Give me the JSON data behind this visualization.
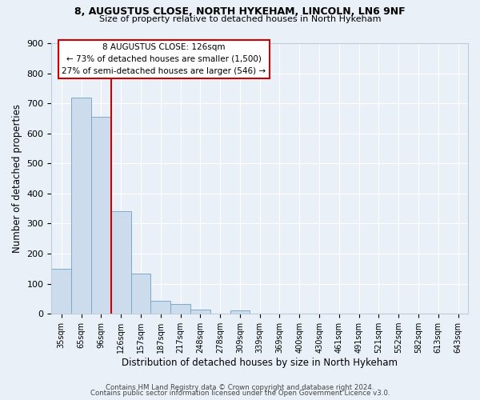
{
  "title1": "8, AUGUSTUS CLOSE, NORTH HYKEHAM, LINCOLN, LN6 9NF",
  "title2": "Size of property relative to detached houses in North Hykeham",
  "xlabel": "Distribution of detached houses by size in North Hykeham",
  "ylabel": "Number of detached properties",
  "bar_labels": [
    "35sqm",
    "65sqm",
    "96sqm",
    "126sqm",
    "157sqm",
    "187sqm",
    "217sqm",
    "248sqm",
    "278sqm",
    "309sqm",
    "339sqm",
    "369sqm",
    "400sqm",
    "430sqm",
    "461sqm",
    "491sqm",
    "521sqm",
    "552sqm",
    "582sqm",
    "613sqm",
    "643sqm"
  ],
  "bar_heights": [
    150,
    720,
    655,
    340,
    133,
    43,
    33,
    13,
    0,
    12,
    0,
    0,
    0,
    0,
    0,
    0,
    0,
    0,
    0,
    0,
    0
  ],
  "bar_color": "#cddcec",
  "bar_edge_color": "#7aaac8",
  "red_line_index": 3,
  "red_line_color": "#cc0000",
  "ylim": [
    0,
    900
  ],
  "yticks": [
    0,
    100,
    200,
    300,
    400,
    500,
    600,
    700,
    800,
    900
  ],
  "annotation_lines": [
    "8 AUGUSTUS CLOSE: 126sqm",
    "← 73% of detached houses are smaller (1,500)",
    "27% of semi-detached houses are larger (546) →"
  ],
  "annotation_box_color": "#ffffff",
  "annotation_box_edge_color": "#cc0000",
  "footer1": "Contains HM Land Registry data © Crown copyright and database right 2024.",
  "footer2": "Contains public sector information licensed under the Open Government Licence v3.0.",
  "bg_color": "#eaf0f8",
  "grid_color": "#ffffff"
}
